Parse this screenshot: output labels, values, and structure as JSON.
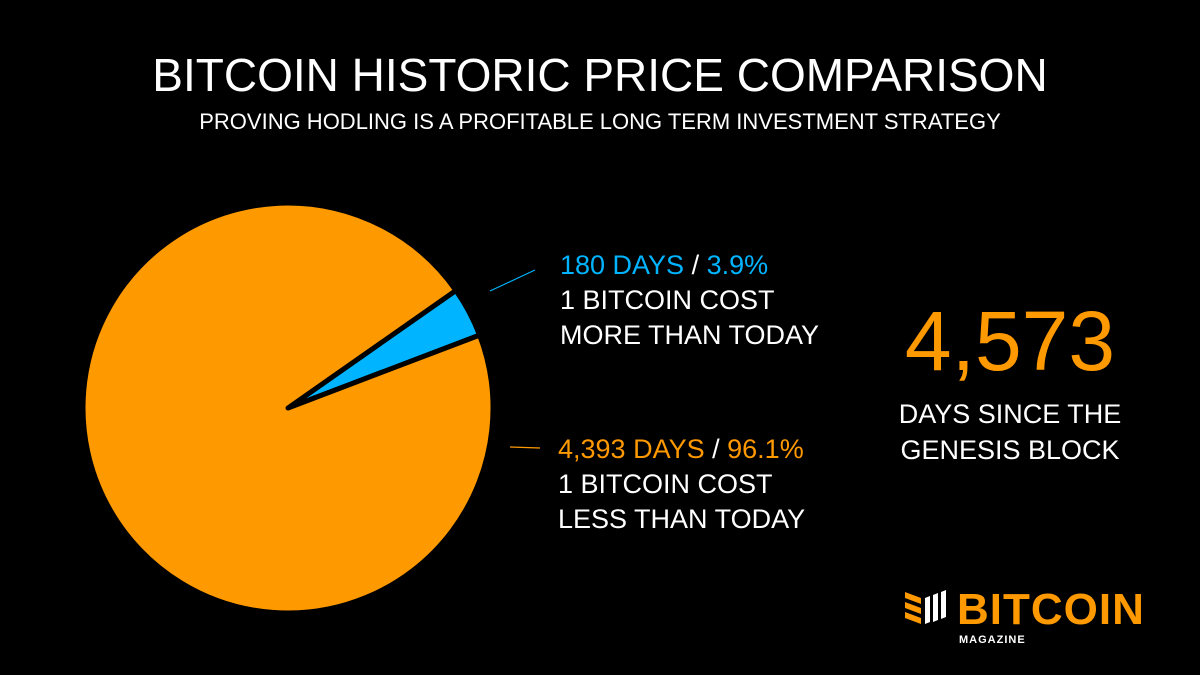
{
  "chart_data": {
    "type": "pie",
    "title": "BITCOIN HISTORIC PRICE COMPARISON",
    "subtitle": "PROVING HODLING IS A PROFITABLE LONG TERM INVESTMENT STRATEGY",
    "slices": [
      {
        "name": "more",
        "days_label": "180 DAYS",
        "sep": "/",
        "pct_label": "3.9%",
        "value": 180,
        "percent": 3.9,
        "desc1": "1 BITCOIN COST",
        "desc2": "MORE THAN TODAY",
        "color": "#00b4ff"
      },
      {
        "name": "less",
        "days_label": "4,393 DAYS",
        "sep": "/",
        "pct_label": "96.1%",
        "value": 4393,
        "percent": 96.1,
        "desc1": "1 BITCOIN COST",
        "desc2": "LESS THAN TODAY",
        "color": "#ff9900"
      }
    ],
    "total": {
      "value": "4,573",
      "caption1": "DAYS SINCE THE",
      "caption2": "GENESIS BLOCK"
    }
  },
  "logo": {
    "word": "BITCOIN",
    "sub": "MAGAZINE"
  }
}
